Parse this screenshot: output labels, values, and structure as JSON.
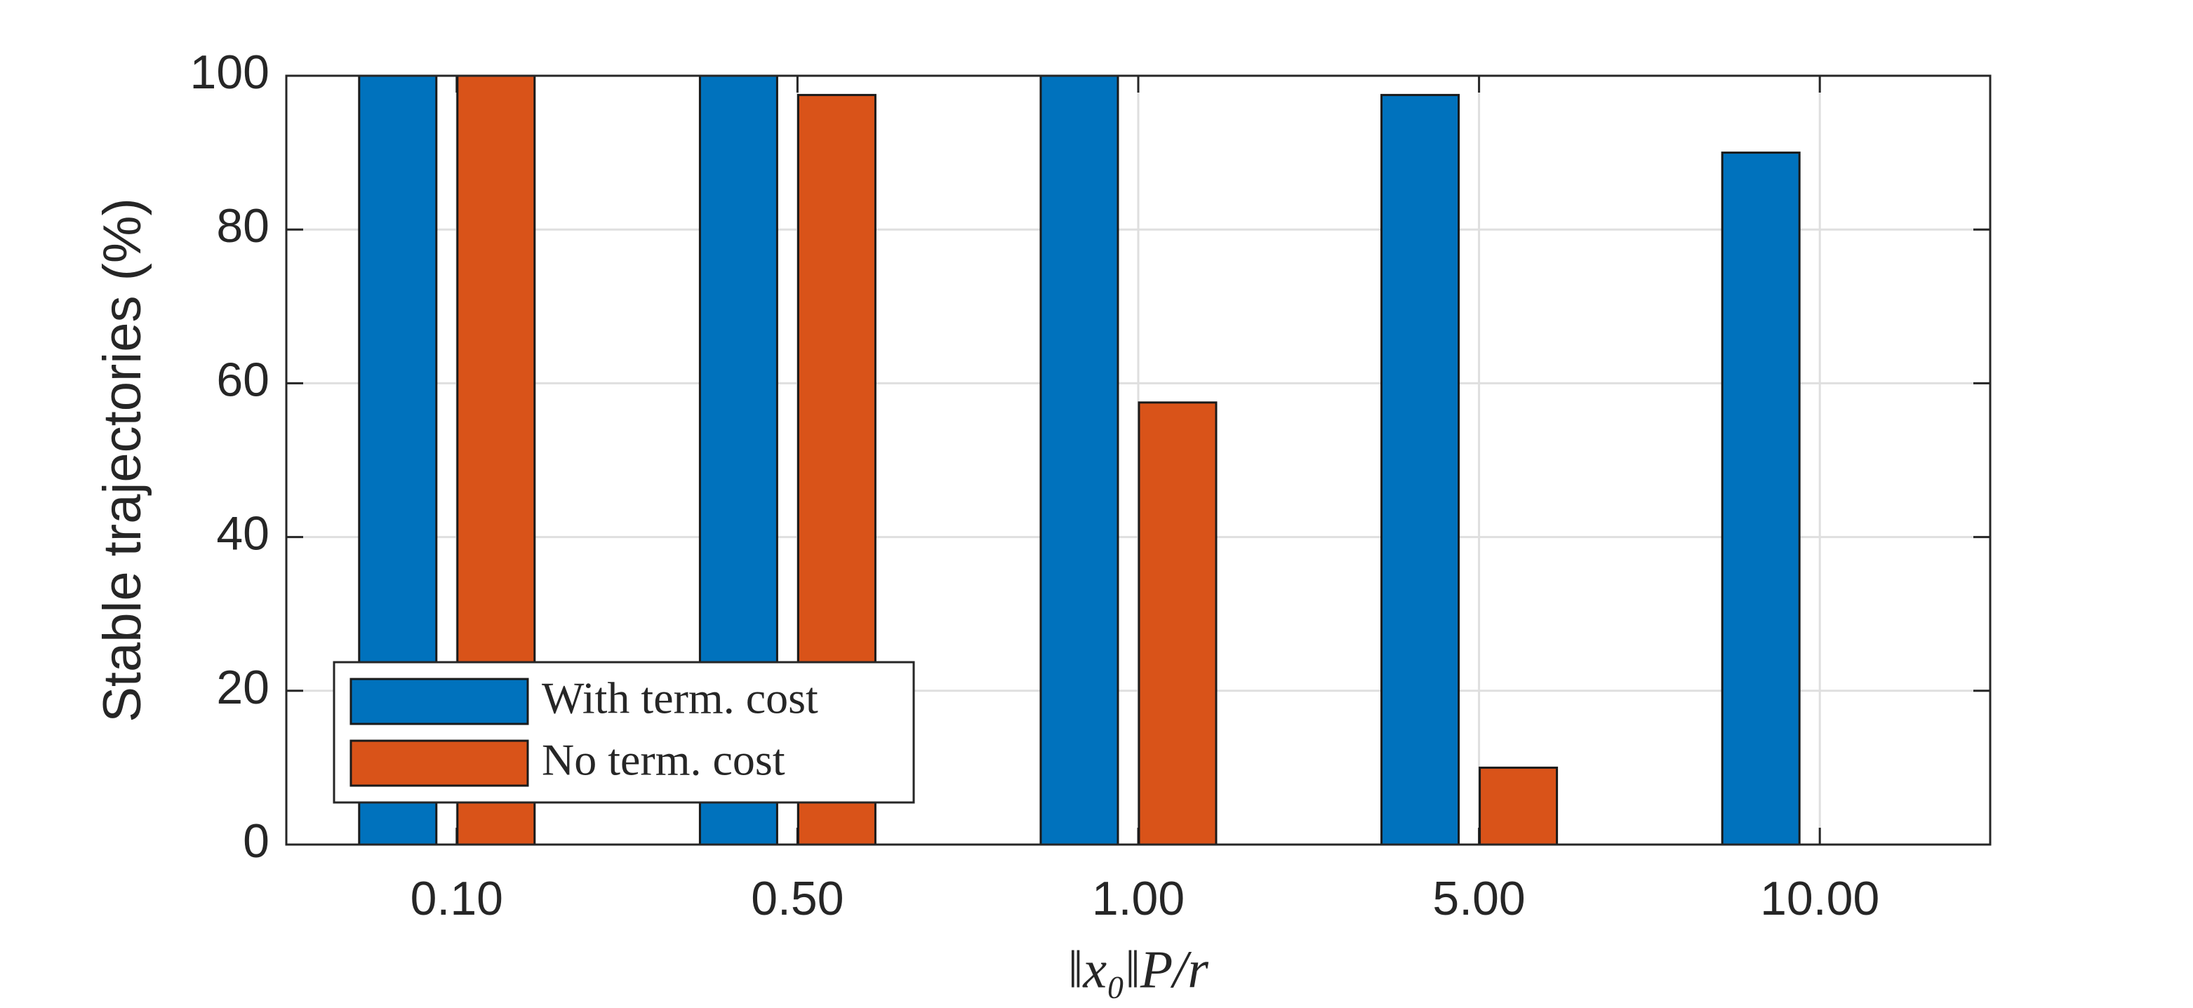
{
  "chart_data": {
    "type": "bar",
    "ylabel": "Stable trajectories (%)",
    "xlabel": "‖x₀‖P/r",
    "categories": [
      "0.10",
      "0.50",
      "1.00",
      "5.00",
      "10.00"
    ],
    "series": [
      {
        "name": "With term. cost",
        "color": "#0072bd",
        "values": [
          100,
          100,
          100,
          97.5,
          90
        ]
      },
      {
        "name": "No term. cost",
        "color": "#d95319",
        "values": [
          100,
          97.5,
          57.5,
          10,
          0
        ]
      }
    ],
    "ylim": [
      0,
      100
    ],
    "yticks": [
      0,
      20,
      40,
      60,
      80,
      100
    ],
    "grid": true,
    "legend": "lower left"
  }
}
